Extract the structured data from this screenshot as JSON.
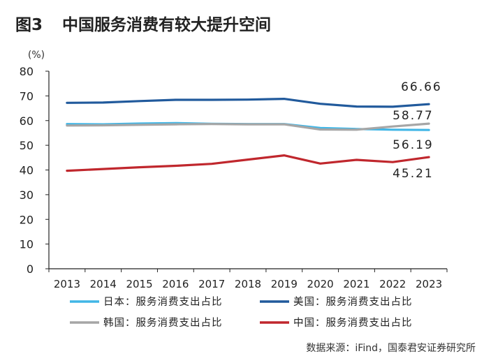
{
  "figure": {
    "number": "图3",
    "title": "中国服务消费有较大提升空间",
    "source": "数据来源：iFind，国泰君安证券研究所"
  },
  "chart_data": {
    "type": "line",
    "unit_label": "(%)",
    "x": [
      "2013",
      "2014",
      "2015",
      "2016",
      "2017",
      "2018",
      "2019",
      "2020",
      "2021",
      "2022",
      "2023"
    ],
    "ylim": [
      0,
      80
    ],
    "yticks": [
      0,
      10,
      20,
      30,
      40,
      50,
      60,
      70,
      80
    ],
    "grid": false,
    "legend_position": "bottom",
    "series": [
      {
        "name": "日本：服务消费支出占比",
        "color": "#41b6e6",
        "values": [
          58.6,
          58.5,
          58.8,
          59.0,
          58.7,
          58.6,
          58.6,
          57.0,
          56.6,
          56.3,
          56.19
        ]
      },
      {
        "name": "美国：服务消费支出占比",
        "color": "#215a9c",
        "values": [
          67.2,
          67.3,
          67.9,
          68.4,
          68.4,
          68.5,
          68.8,
          66.8,
          65.7,
          65.6,
          66.66
        ]
      },
      {
        "name": "韩国：服务消费支出占比",
        "color": "#a6a6a6",
        "values": [
          58.0,
          58.1,
          58.3,
          58.5,
          58.6,
          58.5,
          58.5,
          56.4,
          56.3,
          57.6,
          58.77
        ]
      },
      {
        "name": "中国：服务消费支出占比",
        "color": "#c0272d",
        "values": [
          39.7,
          40.4,
          41.1,
          41.7,
          42.5,
          44.2,
          45.9,
          42.6,
          44.1,
          43.2,
          45.21
        ]
      }
    ],
    "annotations": [
      {
        "text": "66.66",
        "series": 1
      },
      {
        "text": "58.77",
        "series": 2
      },
      {
        "text": "56.19",
        "series": 0
      },
      {
        "text": "45.21",
        "series": 3
      }
    ]
  }
}
